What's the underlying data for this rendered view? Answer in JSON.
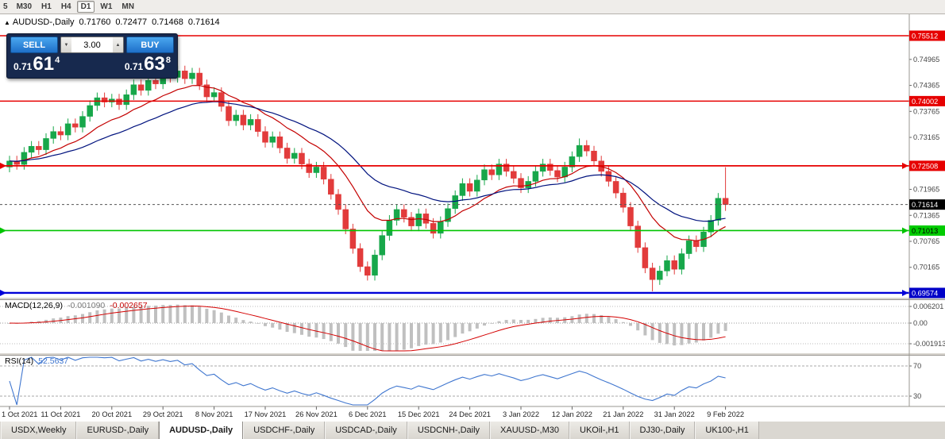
{
  "toolbar": {
    "timeframes": [
      {
        "label": "5",
        "active": false
      },
      {
        "label": "M30",
        "active": false
      },
      {
        "label": "H1",
        "active": false
      },
      {
        "label": "H4",
        "active": false
      },
      {
        "label": "D1",
        "active": true
      },
      {
        "label": "W1",
        "active": false
      },
      {
        "label": "MN",
        "active": false
      }
    ]
  },
  "header": {
    "collapse_icon": "▲",
    "symbol": "AUDUSD-,Daily",
    "open": "0.71760",
    "high": "0.72477",
    "low": "0.71468",
    "close": "0.71614"
  },
  "one_click": {
    "sell_label": "SELL",
    "buy_label": "BUY",
    "volume": "3.00",
    "decrease_icon": "▼",
    "increase_icon": "▲",
    "sell": {
      "prefix": "0.71",
      "big": "61",
      "sup": "4"
    },
    "buy": {
      "prefix": "0.71",
      "big": "63",
      "sup": "8"
    }
  },
  "tabs": [
    {
      "label": "USDX,Weekly",
      "active": false
    },
    {
      "label": "EURUSD-,Daily",
      "active": false
    },
    {
      "label": "AUDUSD-,Daily",
      "active": true
    },
    {
      "label": "USDCHF-,Daily",
      "active": false
    },
    {
      "label": "USDCAD-,Daily",
      "active": false
    },
    {
      "label": "USDCNH-,Daily",
      "active": false
    },
    {
      "label": "XAUUSD-,M30",
      "active": false
    },
    {
      "label": "UKOil-,H1",
      "active": false
    },
    {
      "label": "DJ30-,Daily",
      "active": false
    },
    {
      "label": "UK100-,H1",
      "active": false
    }
  ],
  "chart_data": {
    "type": "candlestick",
    "symbol": "AUDUSD",
    "timeframe": "Daily",
    "last_bar": {
      "open": 0.7176,
      "high": 0.72477,
      "low": 0.71468,
      "close": 0.71614
    },
    "colors": {
      "bull": "#17a74a",
      "bear": "#e23b3b",
      "ma_fast": "#c40000",
      "ma_slow": "#00127e",
      "macd_hist": "#c0c0c0",
      "macd_signal": "#d40000",
      "rsi": "#3F76CF",
      "level_red": "#e60000",
      "level_green": "#00c400",
      "level_blue": "#0000d8",
      "current_badge": "#000000"
    },
    "y_ticks": [
      "0.74965",
      "0.74365",
      "0.73765",
      "0.73165",
      "0.71965",
      "0.71365",
      "0.70765",
      "0.70165"
    ],
    "levels": [
      {
        "price": 0.75512,
        "label": "0.75512",
        "line": "#e60000",
        "badge": "#e60000",
        "text": "#ffffff",
        "width": 1.4
      },
      {
        "price": 0.74002,
        "label": "0.74002",
        "line": "#e60000",
        "badge": "#e60000",
        "text": "#ffffff",
        "width": 1.4
      },
      {
        "price": 0.72508,
        "label": "0.72508",
        "line": "#e60000",
        "badge": "#e60000",
        "text": "#ffffff",
        "width": 1.8,
        "marker": true
      },
      {
        "price": 0.71614,
        "label": "0.71614",
        "line": "#555555",
        "badge": "#000000",
        "text": "#ffffff",
        "width": 1,
        "dash": "3,3"
      },
      {
        "price": 0.71013,
        "label": "0.71013",
        "line": "#00c400",
        "badge": "#00cc00",
        "text": "#000000",
        "width": 1.6,
        "marker": true
      },
      {
        "price": 0.69574,
        "label": "0.69574",
        "line": "#0000d8",
        "badge": "#0000c8",
        "text": "#ffffff",
        "width": 2.4,
        "marker": true
      }
    ],
    "x_labels": [
      "1 Oct 2021",
      "11 Oct 2021",
      "20 Oct 2021",
      "29 Oct 2021",
      "8 Nov 2021",
      "17 Nov 2021",
      "26 Nov 2021",
      "6 Dec 2021",
      "15 Dec 2021",
      "24 Dec 2021",
      "3 Jan 2022",
      "12 Jan 2022",
      "21 Jan 2022",
      "31 Jan 2022",
      "9 Feb 2022"
    ],
    "x_label_indices": [
      0,
      7,
      14,
      21,
      28,
      35,
      42,
      49,
      56,
      63,
      70,
      77,
      84,
      91,
      98
    ],
    "candles": [
      [
        0.7248,
        0.7274,
        0.7236,
        0.7262
      ],
      [
        0.7262,
        0.7274,
        0.7242,
        0.7254
      ],
      [
        0.7254,
        0.7294,
        0.7242,
        0.7282
      ],
      [
        0.7282,
        0.7308,
        0.727,
        0.7296
      ],
      [
        0.7296,
        0.7308,
        0.7276,
        0.7288
      ],
      [
        0.7288,
        0.7326,
        0.7276,
        0.7314
      ],
      [
        0.7314,
        0.7342,
        0.7302,
        0.733
      ],
      [
        0.733,
        0.7342,
        0.731,
        0.7322
      ],
      [
        0.7322,
        0.736,
        0.731,
        0.7348
      ],
      [
        0.7348,
        0.736,
        0.7328,
        0.734
      ],
      [
        0.734,
        0.7377,
        0.7328,
        0.7365
      ],
      [
        0.7365,
        0.7402,
        0.7353,
        0.739
      ],
      [
        0.739,
        0.742,
        0.7378,
        0.7408
      ],
      [
        0.7408,
        0.742,
        0.7386,
        0.7398
      ],
      [
        0.7398,
        0.7417,
        0.7386,
        0.7405
      ],
      [
        0.7405,
        0.7417,
        0.738,
        0.7392
      ],
      [
        0.7392,
        0.7427,
        0.738,
        0.7415
      ],
      [
        0.7415,
        0.745,
        0.7403,
        0.7438
      ],
      [
        0.7438,
        0.745,
        0.7413,
        0.7425
      ],
      [
        0.7425,
        0.746,
        0.7413,
        0.7448
      ],
      [
        0.7448,
        0.746,
        0.7428,
        0.744
      ],
      [
        0.744,
        0.7474,
        0.7428,
        0.7462
      ],
      [
        0.7462,
        0.7474,
        0.7443,
        0.7455
      ],
      [
        0.7455,
        0.7482,
        0.7443,
        0.747
      ],
      [
        0.747,
        0.7482,
        0.744,
        0.7452
      ],
      [
        0.7452,
        0.7477,
        0.744,
        0.7465
      ],
      [
        0.7465,
        0.7477,
        0.7426,
        0.7438
      ],
      [
        0.7438,
        0.745,
        0.7398,
        0.741
      ],
      [
        0.741,
        0.7432,
        0.7398,
        0.742
      ],
      [
        0.742,
        0.7432,
        0.7376,
        0.7388
      ],
      [
        0.7388,
        0.74,
        0.7343,
        0.7355
      ],
      [
        0.7355,
        0.738,
        0.7343,
        0.7368
      ],
      [
        0.7368,
        0.738,
        0.7333,
        0.7345
      ],
      [
        0.7345,
        0.737,
        0.7333,
        0.7358
      ],
      [
        0.7358,
        0.737,
        0.7318,
        0.733
      ],
      [
        0.733,
        0.7342,
        0.7293,
        0.7305
      ],
      [
        0.7305,
        0.733,
        0.7293,
        0.7318
      ],
      [
        0.7318,
        0.733,
        0.728,
        0.7292
      ],
      [
        0.7292,
        0.7304,
        0.7256,
        0.7268
      ],
      [
        0.7268,
        0.7292,
        0.7256,
        0.728
      ],
      [
        0.728,
        0.7292,
        0.7243,
        0.7255
      ],
      [
        0.7255,
        0.7267,
        0.7223,
        0.7235
      ],
      [
        0.7235,
        0.726,
        0.7223,
        0.7248
      ],
      [
        0.7248,
        0.726,
        0.7208,
        0.722
      ],
      [
        0.722,
        0.7232,
        0.7173,
        0.7185
      ],
      [
        0.7185,
        0.7197,
        0.7138,
        0.715
      ],
      [
        0.715,
        0.7162,
        0.7093,
        0.7105
      ],
      [
        0.7105,
        0.7117,
        0.7048,
        0.706
      ],
      [
        0.706,
        0.7072,
        0.7006,
        0.7018
      ],
      [
        0.7018,
        0.703,
        0.6986,
        0.6998
      ],
      [
        0.6998,
        0.7057,
        0.6986,
        0.7045
      ],
      [
        0.7045,
        0.7102,
        0.7033,
        0.709
      ],
      [
        0.709,
        0.7137,
        0.7078,
        0.7125
      ],
      [
        0.7125,
        0.7162,
        0.7113,
        0.715
      ],
      [
        0.715,
        0.7162,
        0.712,
        0.7132
      ],
      [
        0.7132,
        0.7144,
        0.71,
        0.7112
      ],
      [
        0.7112,
        0.7152,
        0.71,
        0.714
      ],
      [
        0.714,
        0.7152,
        0.7106,
        0.7118
      ],
      [
        0.7118,
        0.713,
        0.7083,
        0.7095
      ],
      [
        0.7095,
        0.7134,
        0.7083,
        0.7122
      ],
      [
        0.7122,
        0.7164,
        0.711,
        0.7152
      ],
      [
        0.7152,
        0.7194,
        0.714,
        0.7182
      ],
      [
        0.7182,
        0.7222,
        0.717,
        0.721
      ],
      [
        0.721,
        0.7222,
        0.718,
        0.7192
      ],
      [
        0.7192,
        0.723,
        0.718,
        0.7218
      ],
      [
        0.7218,
        0.7254,
        0.7206,
        0.7242
      ],
      [
        0.7242,
        0.7254,
        0.7218,
        0.723
      ],
      [
        0.723,
        0.7267,
        0.7218,
        0.7255
      ],
      [
        0.7255,
        0.7267,
        0.7226,
        0.7238
      ],
      [
        0.7238,
        0.725,
        0.721,
        0.7222
      ],
      [
        0.7222,
        0.7234,
        0.7188,
        0.72
      ],
      [
        0.72,
        0.7227,
        0.7188,
        0.7215
      ],
      [
        0.7215,
        0.725,
        0.7203,
        0.7238
      ],
      [
        0.7238,
        0.7267,
        0.7226,
        0.7255
      ],
      [
        0.7255,
        0.7267,
        0.7228,
        0.724
      ],
      [
        0.724,
        0.7252,
        0.7213,
        0.7225
      ],
      [
        0.7225,
        0.726,
        0.7213,
        0.7248
      ],
      [
        0.7248,
        0.7284,
        0.7236,
        0.7272
      ],
      [
        0.7272,
        0.7314,
        0.726,
        0.7298
      ],
      [
        0.7298,
        0.731,
        0.7273,
        0.7285
      ],
      [
        0.7285,
        0.7297,
        0.725,
        0.7262
      ],
      [
        0.7262,
        0.7274,
        0.7226,
        0.7238
      ],
      [
        0.7238,
        0.725,
        0.7203,
        0.7215
      ],
      [
        0.7215,
        0.7227,
        0.7176,
        0.7188
      ],
      [
        0.7188,
        0.72,
        0.7143,
        0.7155
      ],
      [
        0.7155,
        0.7167,
        0.71,
        0.7112
      ],
      [
        0.7112,
        0.7124,
        0.705,
        0.7062
      ],
      [
        0.7062,
        0.7074,
        0.7003,
        0.7015
      ],
      [
        0.7015,
        0.7027,
        0.6961,
        0.6988
      ],
      [
        0.6988,
        0.702,
        0.6976,
        0.7008
      ],
      [
        0.7008,
        0.7044,
        0.6996,
        0.7032
      ],
      [
        0.7032,
        0.7044,
        0.7,
        0.7012
      ],
      [
        0.7012,
        0.706,
        0.7,
        0.7048
      ],
      [
        0.7048,
        0.709,
        0.7036,
        0.7078
      ],
      [
        0.7078,
        0.709,
        0.7052,
        0.7064
      ],
      [
        0.7064,
        0.711,
        0.7052,
        0.7098
      ],
      [
        0.7098,
        0.7137,
        0.7086,
        0.7125
      ],
      [
        0.7125,
        0.7188,
        0.7113,
        0.7176
      ],
      [
        0.7176,
        0.72477,
        0.71468,
        0.71614
      ]
    ],
    "moving_averages": [
      {
        "type": "EMA",
        "period": 12,
        "color_key": "ma_fast"
      },
      {
        "type": "EMA",
        "period": 26,
        "color_key": "ma_slow"
      }
    ],
    "macd": {
      "name": "MACD(12,26,9)",
      "value_main": "-0.001090",
      "value_signal": "-0.002657",
      "fast": 12,
      "slow": 26,
      "signal": 9,
      "axis_labels": [
        "0.006201",
        "0.00",
        "-0.001913"
      ]
    },
    "rsi": {
      "name": "RSI(14)",
      "value": "52.5637",
      "period": 14,
      "levels": [
        "70",
        "30"
      ]
    }
  }
}
